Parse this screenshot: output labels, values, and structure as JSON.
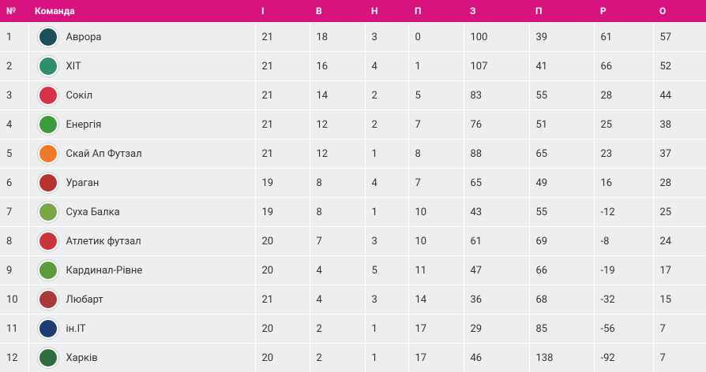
{
  "table": {
    "headers": [
      "№",
      "Команда",
      "І",
      "В",
      "Н",
      "П",
      "З",
      "П",
      "Р",
      "О"
    ],
    "rows": [
      [
        1,
        "Аврора",
        21,
        18,
        3,
        0,
        100,
        39,
        61,
        57
      ],
      [
        2,
        "ХІТ",
        21,
        16,
        4,
        1,
        107,
        41,
        66,
        52
      ],
      [
        3,
        "Сокіл",
        21,
        14,
        2,
        5,
        83,
        55,
        28,
        44
      ],
      [
        4,
        "Енергія",
        21,
        12,
        2,
        7,
        76,
        51,
        25,
        38
      ],
      [
        5,
        "Скай Ап Футзал",
        21,
        12,
        1,
        8,
        88,
        65,
        23,
        37
      ],
      [
        6,
        "Ураган",
        19,
        8,
        4,
        7,
        65,
        49,
        16,
        28
      ],
      [
        7,
        "Суха Балка",
        19,
        8,
        1,
        10,
        43,
        55,
        -12,
        25
      ],
      [
        8,
        "Атлетик футзал",
        20,
        7,
        3,
        10,
        61,
        69,
        -8,
        24
      ],
      [
        9,
        "Кардинал-Рівне",
        20,
        4,
        5,
        11,
        47,
        66,
        -19,
        17
      ],
      [
        10,
        "Любарт",
        21,
        4,
        3,
        14,
        36,
        68,
        -32,
        15
      ],
      [
        11,
        "ін.IT",
        20,
        2,
        1,
        17,
        29,
        85,
        -56,
        7
      ],
      [
        12,
        "Харків",
        20,
        2,
        1,
        17,
        46,
        138,
        -92,
        7
      ]
    ]
  }
}
